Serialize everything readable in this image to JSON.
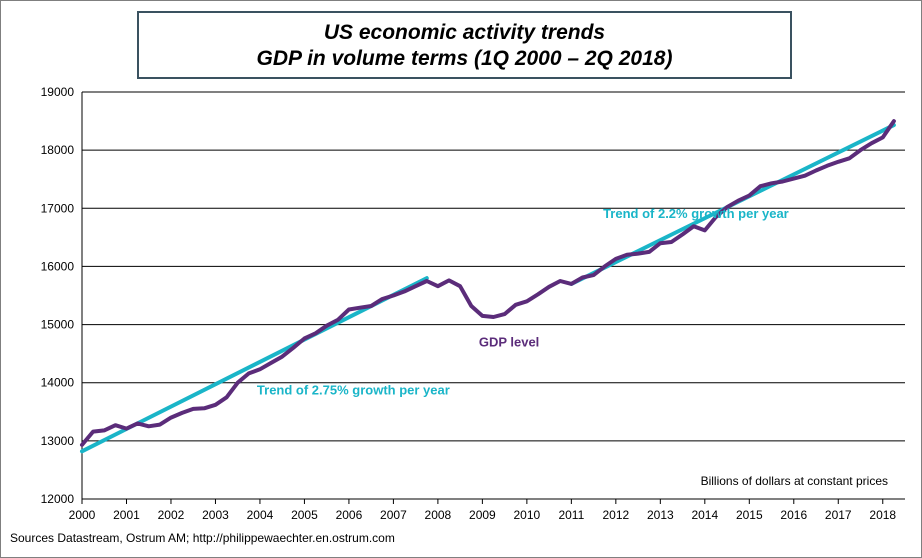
{
  "title_lines": [
    "US economic activity trends",
    "GDP in volume terms (1Q 2000 – 2Q 2018)"
  ],
  "source_note": "Sources Datastream, Ostrum AM; http://philippewaechter.en.ostrum.com",
  "chart_data": {
    "type": "line",
    "title": "US economic activity trends — GDP in volume terms (1Q 2000 – 2Q 2018)",
    "xlabel": "",
    "ylabel": "",
    "units_note": "Billions of dollars at constant prices",
    "x_tick_labels": [
      "2000",
      "2001",
      "2002",
      "2003",
      "2004",
      "2005",
      "2006",
      "2007",
      "2008",
      "2009",
      "2010",
      "2011",
      "2012",
      "2013",
      "2014",
      "2015",
      "2016",
      "2017",
      "2018"
    ],
    "y_ticks": [
      12000,
      13000,
      14000,
      15000,
      16000,
      17000,
      18000,
      19000
    ],
    "xlim": [
      2000.0,
      2018.5
    ],
    "ylim": [
      12000,
      19000
    ],
    "grid": "horizontal",
    "series": [
      {
        "name": "GDP level",
        "color": "#5b2c7a",
        "x": [
          2000.0,
          2000.25,
          2000.5,
          2000.75,
          2001.0,
          2001.25,
          2001.5,
          2001.75,
          2002.0,
          2002.25,
          2002.5,
          2002.75,
          2003.0,
          2003.25,
          2003.5,
          2003.75,
          2004.0,
          2004.25,
          2004.5,
          2004.75,
          2005.0,
          2005.25,
          2005.5,
          2005.75,
          2006.0,
          2006.25,
          2006.5,
          2006.75,
          2007.0,
          2007.25,
          2007.5,
          2007.75,
          2008.0,
          2008.25,
          2008.5,
          2008.75,
          2009.0,
          2009.25,
          2009.5,
          2009.75,
          2010.0,
          2010.25,
          2010.5,
          2010.75,
          2011.0,
          2011.25,
          2011.5,
          2011.75,
          2012.0,
          2012.25,
          2012.5,
          2012.75,
          2013.0,
          2013.25,
          2013.5,
          2013.75,
          2014.0,
          2014.25,
          2014.5,
          2014.75,
          2015.0,
          2015.25,
          2015.5,
          2015.75,
          2016.0,
          2016.25,
          2016.5,
          2016.75,
          2017.0,
          2017.25,
          2017.5,
          2017.75,
          2018.0,
          2018.25
        ],
        "values": [
          12930,
          13160,
          13180,
          13270,
          13210,
          13300,
          13250,
          13280,
          13400,
          13480,
          13550,
          13560,
          13620,
          13750,
          14000,
          14160,
          14230,
          14340,
          14450,
          14600,
          14760,
          14850,
          14980,
          15080,
          15260,
          15290,
          15320,
          15440,
          15500,
          15570,
          15660,
          15750,
          15660,
          15760,
          15660,
          15320,
          15150,
          15130,
          15180,
          15340,
          15400,
          15520,
          15650,
          15750,
          15700,
          15810,
          15850,
          16000,
          16130,
          16200,
          16220,
          16250,
          16400,
          16420,
          16550,
          16690,
          16620,
          16850,
          17020,
          17130,
          17220,
          17380,
          17430,
          17460,
          17510,
          17560,
          17650,
          17730,
          17800,
          17860,
          18000,
          18120,
          18220,
          18500
        ]
      },
      {
        "name": "Trend of 2.75% growth per year",
        "color": "#1ab5c8",
        "x": [
          2000.0,
          2007.75
        ],
        "values": [
          12820,
          15800
        ]
      },
      {
        "name": "Trend of 2.2% growth per year",
        "color": "#1ab5c8",
        "x": [
          2011.0,
          2018.25
        ],
        "values": [
          15700,
          18430
        ]
      }
    ],
    "annotations": [
      {
        "text": "GDP level",
        "x": 2009.6,
        "y": 14620,
        "color": "#5b2c7a"
      },
      {
        "text": "Trend of 2.75% growth per year",
        "x": 2006.1,
        "y": 13800,
        "color": "#1ab5c8"
      },
      {
        "text": "Trend of 2.2% growth per year",
        "x": 2013.8,
        "y": 16830,
        "color": "#1ab5c8"
      }
    ]
  }
}
